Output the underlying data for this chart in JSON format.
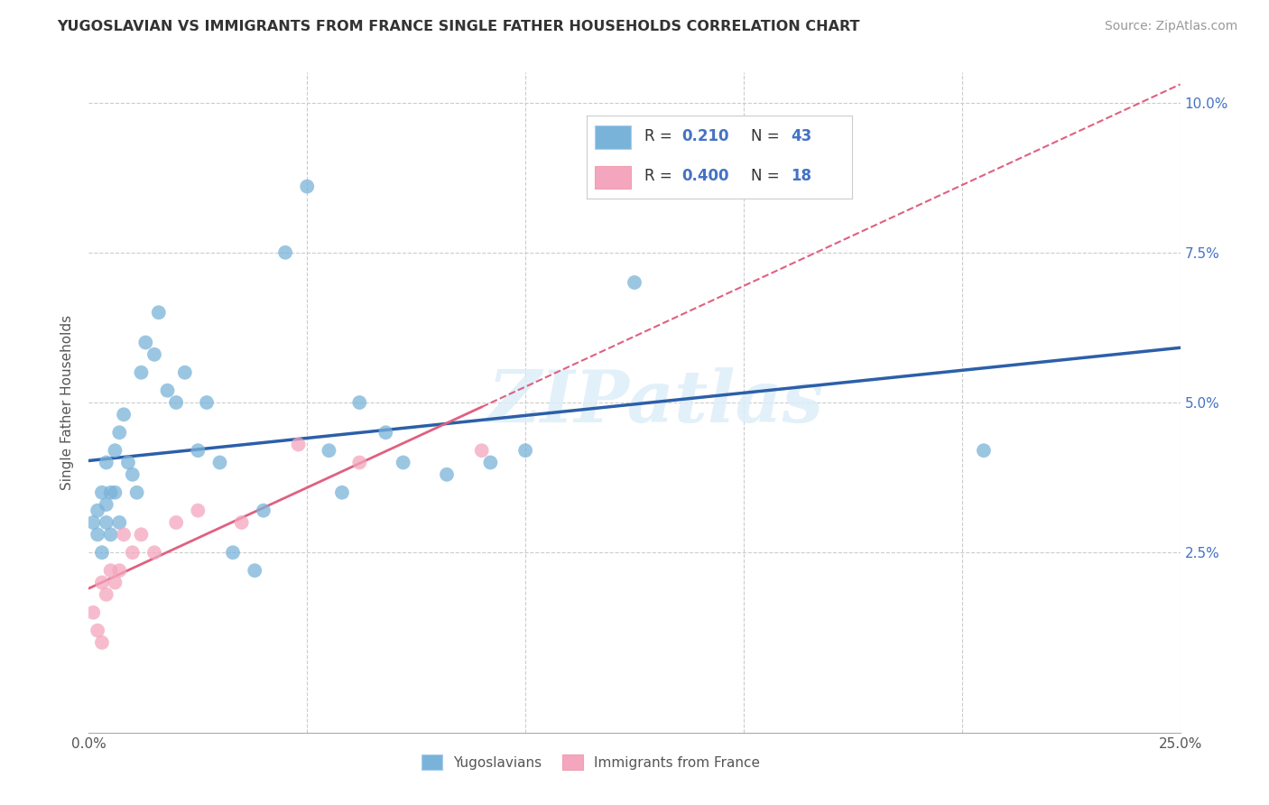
{
  "title": "YUGOSLAVIAN VS IMMIGRANTS FROM FRANCE SINGLE FATHER HOUSEHOLDS CORRELATION CHART",
  "source": "Source: ZipAtlas.com",
  "ylabel": "Single Father Households",
  "xlim": [
    0.0,
    0.25
  ],
  "ylim": [
    -0.005,
    0.105
  ],
  "background_color": "#ffffff",
  "watermark_text": "ZIPatlas",
  "blue_color": "#7ab3d9",
  "pink_color": "#f4a6be",
  "blue_line_color": "#2c5fa8",
  "pink_line_color": "#e06080",
  "legend_blue_label": "R =  0.210   N = 43",
  "legend_pink_label": "R =  0.400   N = 18",
  "yug_x": [
    0.001,
    0.002,
    0.002,
    0.003,
    0.003,
    0.004,
    0.004,
    0.004,
    0.005,
    0.005,
    0.006,
    0.006,
    0.007,
    0.007,
    0.008,
    0.009,
    0.01,
    0.011,
    0.012,
    0.013,
    0.015,
    0.016,
    0.018,
    0.02,
    0.022,
    0.025,
    0.027,
    0.03,
    0.033,
    0.038,
    0.04,
    0.045,
    0.05,
    0.055,
    0.058,
    0.062,
    0.068,
    0.072,
    0.082,
    0.092,
    0.1,
    0.125,
    0.205
  ],
  "yug_y": [
    0.03,
    0.028,
    0.032,
    0.035,
    0.025,
    0.033,
    0.04,
    0.03,
    0.035,
    0.028,
    0.042,
    0.035,
    0.045,
    0.03,
    0.048,
    0.04,
    0.038,
    0.035,
    0.055,
    0.06,
    0.058,
    0.065,
    0.052,
    0.05,
    0.055,
    0.042,
    0.05,
    0.04,
    0.025,
    0.022,
    0.032,
    0.075,
    0.086,
    0.042,
    0.035,
    0.05,
    0.045,
    0.04,
    0.038,
    0.04,
    0.042,
    0.07,
    0.042
  ],
  "fra_x": [
    0.001,
    0.002,
    0.003,
    0.003,
    0.004,
    0.005,
    0.006,
    0.007,
    0.008,
    0.01,
    0.012,
    0.015,
    0.02,
    0.025,
    0.035,
    0.048,
    0.062,
    0.09
  ],
  "fra_y": [
    0.015,
    0.012,
    0.02,
    0.01,
    0.018,
    0.022,
    0.02,
    0.022,
    0.028,
    0.025,
    0.028,
    0.025,
    0.03,
    0.032,
    0.03,
    0.043,
    0.04,
    0.042
  ]
}
